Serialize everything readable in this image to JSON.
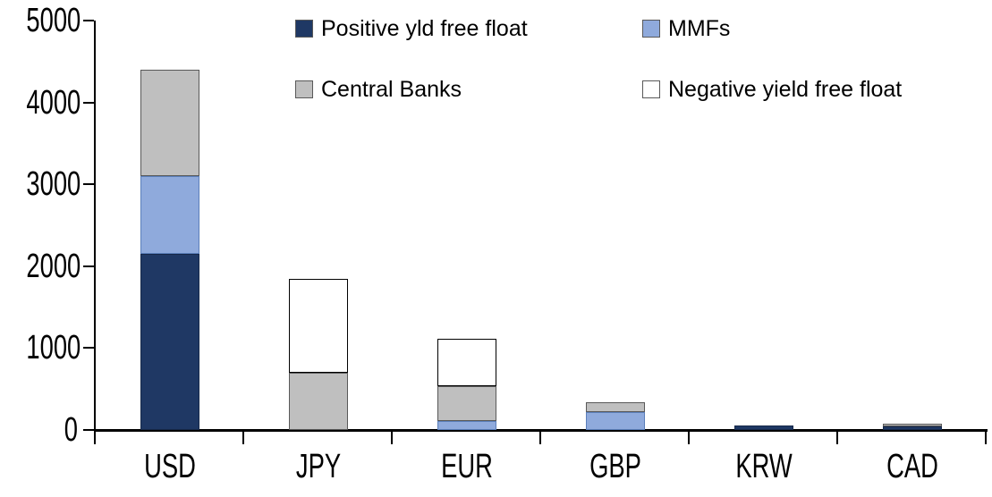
{
  "chart_data": {
    "type": "bar",
    "variant": "stacked-vertical",
    "title": "",
    "xlabel": "",
    "ylabel": "",
    "categories": [
      "USD",
      "JPY",
      "EUR",
      "GBP",
      "KRW",
      "CAD"
    ],
    "series": [
      {
        "name": "Positive yld free float",
        "color": "#1F3864",
        "border": "#16294A",
        "values": [
          2150,
          0,
          0,
          0,
          50,
          40
        ]
      },
      {
        "name": "MMFs",
        "color": "#8FAADC",
        "border": "#5B7FBA",
        "values": [
          950,
          0,
          110,
          220,
          0,
          0
        ]
      },
      {
        "name": "Central Banks",
        "color": "#BFBFBF",
        "border": "#595959",
        "values": [
          1300,
          700,
          430,
          120,
          0,
          40
        ]
      },
      {
        "name": "Negative yield free float",
        "color": "#FFFFFF",
        "border": "#000000",
        "values": [
          0,
          1150,
          575,
          0,
          0,
          0
        ]
      }
    ],
    "stack_order_bottom_to_top": [
      "Positive yld free float",
      "MMFs",
      "Central Banks",
      "Negative yield free float"
    ],
    "totals_by_category": [
      4400,
      1850,
      1115,
      340,
      50,
      80
    ],
    "ylim": [
      0,
      5000
    ],
    "yticks": [
      0,
      1000,
      2000,
      3000,
      4000,
      5000
    ],
    "grid": false,
    "legend_position": "top",
    "legend_layout": [
      [
        "Positive yld free float",
        "MMFs"
      ],
      [
        "Central Banks",
        "Negative yield free float"
      ]
    ],
    "axis_color": "#000000",
    "background_color": "#FFFFFF"
  }
}
